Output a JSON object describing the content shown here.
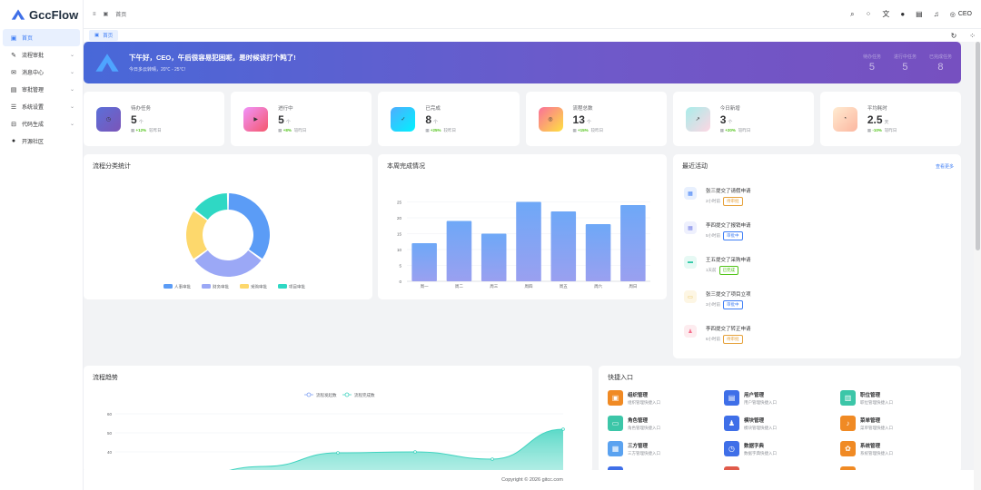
{
  "app": {
    "name": "GccFlow"
  },
  "sidebar": {
    "items": [
      {
        "label": "首页",
        "icon": "monitor-icon",
        "active": true,
        "has_children": false
      },
      {
        "label": "流程审批",
        "icon": "pen-icon",
        "has_children": true
      },
      {
        "label": "消息中心",
        "icon": "mail-icon",
        "has_children": true
      },
      {
        "label": "审批管理",
        "icon": "document-icon",
        "has_children": true
      },
      {
        "label": "系统设置",
        "icon": "sliders-icon",
        "has_children": true
      },
      {
        "label": "代码生成",
        "icon": "code-icon",
        "has_children": true
      },
      {
        "label": "开源社区",
        "icon": "github-icon",
        "has_children": false
      }
    ]
  },
  "header": {
    "breadcrumb": "首页",
    "user": "CEO"
  },
  "tabs": [
    {
      "label": "首页"
    }
  ],
  "banner": {
    "greeting": "下午好，CEO，午后很容易犯困呢，是时候该打个盹了!",
    "weather": "今日多云转晴，20℃ - 25℃!",
    "stats": [
      {
        "label": "待办任务",
        "value": "5"
      },
      {
        "label": "进行中任务",
        "value": "5"
      },
      {
        "label": "已完成任务",
        "value": "8"
      }
    ]
  },
  "stat_cards": [
    {
      "title": "待办任务",
      "value": "5",
      "unit": "个",
      "change": "+12%",
      "suffix": "较昨日",
      "color1": "#5b6fd8",
      "color2": "#7b55b8",
      "icon": "clock-icon"
    },
    {
      "title": "进行中",
      "value": "5",
      "unit": "个",
      "change": "+8%",
      "suffix": "较昨日",
      "color1": "#f093fb",
      "color2": "#f5576c",
      "icon": "play-icon"
    },
    {
      "title": "已完成",
      "value": "8",
      "unit": "个",
      "change": "+25%",
      "suffix": "较昨日",
      "color1": "#4facfe",
      "color2": "#00f2fe",
      "icon": "check-icon"
    },
    {
      "title": "流程总数",
      "value": "13",
      "unit": "个",
      "change": "+15%",
      "suffix": "较昨日",
      "color1": "#fa709a",
      "color2": "#fee140",
      "icon": "flow-icon"
    },
    {
      "title": "今日新增",
      "value": "3",
      "unit": "个",
      "change": "+20%",
      "suffix": "较昨日",
      "color1": "#a8edea",
      "color2": "#fed6e3",
      "icon": "trend-icon"
    },
    {
      "title": "平均耗时",
      "value": "2.5",
      "unit": "天",
      "change": "-10%",
      "suffix": "较昨日",
      "color1": "#ffecd2",
      "color2": "#fcb69f",
      "icon": "timer-icon"
    }
  ],
  "category_panel": {
    "title": "流程分类统计"
  },
  "weekly_panel": {
    "title": "本周完成情况"
  },
  "activity_panel": {
    "title": "最近活动",
    "more": "查看更多",
    "items": [
      {
        "text": "张三提交了请假申请",
        "time": "2小时前",
        "tag": "待审批",
        "tag_color": "#e6a23c",
        "icon_bg": "#e8f0fe",
        "icon_color": "#3f7ef5"
      },
      {
        "text": "李四提交了报销申请",
        "time": "5小时前",
        "tag": "审批中",
        "tag_color": "#3f7ef5",
        "icon_bg": "#eef0fd",
        "icon_color": "#7b85e8"
      },
      {
        "text": "王五提交了采购申请",
        "time": "1天前",
        "tag": "已完成",
        "tag_color": "#52c41a",
        "icon_bg": "#e6f9f4",
        "icon_color": "#2fc9a7"
      },
      {
        "text": "张三提交了项目立项",
        "time": "3小时前",
        "tag": "审批中",
        "tag_color": "#3f7ef5",
        "icon_bg": "#fdf6e4",
        "icon_color": "#e6b83c"
      },
      {
        "text": "李四提交了转正申请",
        "time": "6小时前",
        "tag": "待审批",
        "tag_color": "#e6a23c",
        "icon_bg": "#fdecef",
        "icon_color": "#f56c8a"
      }
    ]
  },
  "trend_panel": {
    "title": "流程趋势"
  },
  "quick_panel": {
    "title": "快捷入口",
    "items": [
      {
        "title": "组织管理",
        "desc": "组织管理快捷入口",
        "color": "#f08a24",
        "icon": "building-icon"
      },
      {
        "title": "用户管理",
        "desc": "用户管理快捷入口",
        "color": "#3f6fe8",
        "icon": "cart-icon"
      },
      {
        "title": "职位管理",
        "desc": "职位管理快捷入口",
        "color": "#3cc6a8",
        "icon": "badge-icon"
      },
      {
        "title": "角色管理",
        "desc": "角色管理快捷入口",
        "color": "#3cc6a8",
        "icon": "card-icon"
      },
      {
        "title": "模块管理",
        "desc": "模块管理快捷入口",
        "color": "#3f6fe8",
        "icon": "user-icon"
      },
      {
        "title": "菜单管理",
        "desc": "菜单管理快捷入口",
        "color": "#f08a24",
        "icon": "bell-icon"
      },
      {
        "title": "三方管理",
        "desc": "三方管理快捷入口",
        "color": "#5aa2f0",
        "icon": "grid-icon"
      },
      {
        "title": "数据字典",
        "desc": "数据字典快捷入口",
        "color": "#3f6fe8",
        "icon": "clock-icon"
      },
      {
        "title": "系统管理",
        "desc": "系统管理快捷入口",
        "color": "#f08a24",
        "icon": "settings-icon"
      }
    ]
  },
  "footer": {
    "text": "Copyright © 2026 gitcc.com"
  },
  "chart_data": [
    {
      "type": "pie",
      "donut": true,
      "categories": [
        "人事审批",
        "财务审批",
        "采购审批",
        "项目审批"
      ],
      "values": [
        35,
        30,
        20,
        15
      ],
      "colors": [
        "#5b9cf6",
        "#9ba8f6",
        "#fdd86c",
        "#2fd8c4"
      ],
      "legend": "bottom"
    },
    {
      "type": "bar",
      "categories": [
        "周一",
        "周二",
        "周三",
        "周四",
        "周五",
        "周六",
        "周日"
      ],
      "values": [
        12,
        19,
        15,
        25,
        22,
        18,
        24
      ],
      "ylim": [
        0,
        30
      ],
      "yticks": [
        0,
        5,
        10,
        15,
        20,
        25
      ],
      "color_top": "#6ea8f7",
      "color_bottom": "#9aa0f0",
      "grid": true
    },
    {
      "type": "area",
      "series": [
        {
          "name": "流程发起数",
          "color": "#7d9ff3"
        },
        {
          "name": "流程完成数",
          "color": "#3fd3bf"
        }
      ],
      "yticks": [
        40,
        50,
        60
      ],
      "legend": "top"
    }
  ]
}
